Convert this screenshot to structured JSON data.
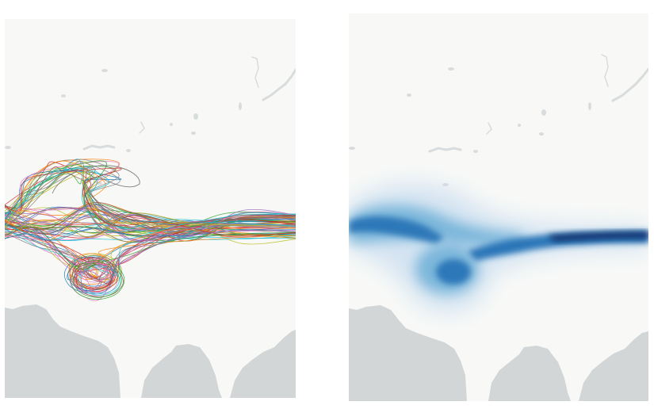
{
  "figure": {
    "panels": [
      {
        "id": "trajectories",
        "kind": "trajectory-spaghetti-map",
        "trajectory_count": 80,
        "colors": [
          "#1f77b4",
          "#ff7f0e",
          "#2ca02c",
          "#d62728",
          "#9467bd",
          "#8c564b",
          "#e377c2",
          "#7f7f7f",
          "#bcbd22",
          "#17becf"
        ]
      },
      {
        "id": "density",
        "kind": "trajectory-density-map",
        "colormap": "Blues",
        "colors": [
          "#f7fbff",
          "#c6dbef",
          "#6baed6",
          "#2171b5",
          "#08306b"
        ]
      }
    ],
    "map_style": {
      "ocean_color": "#f8f9f7",
      "land_color": "#d3d6d7",
      "lake_color": "#d8dcdd"
    }
  }
}
